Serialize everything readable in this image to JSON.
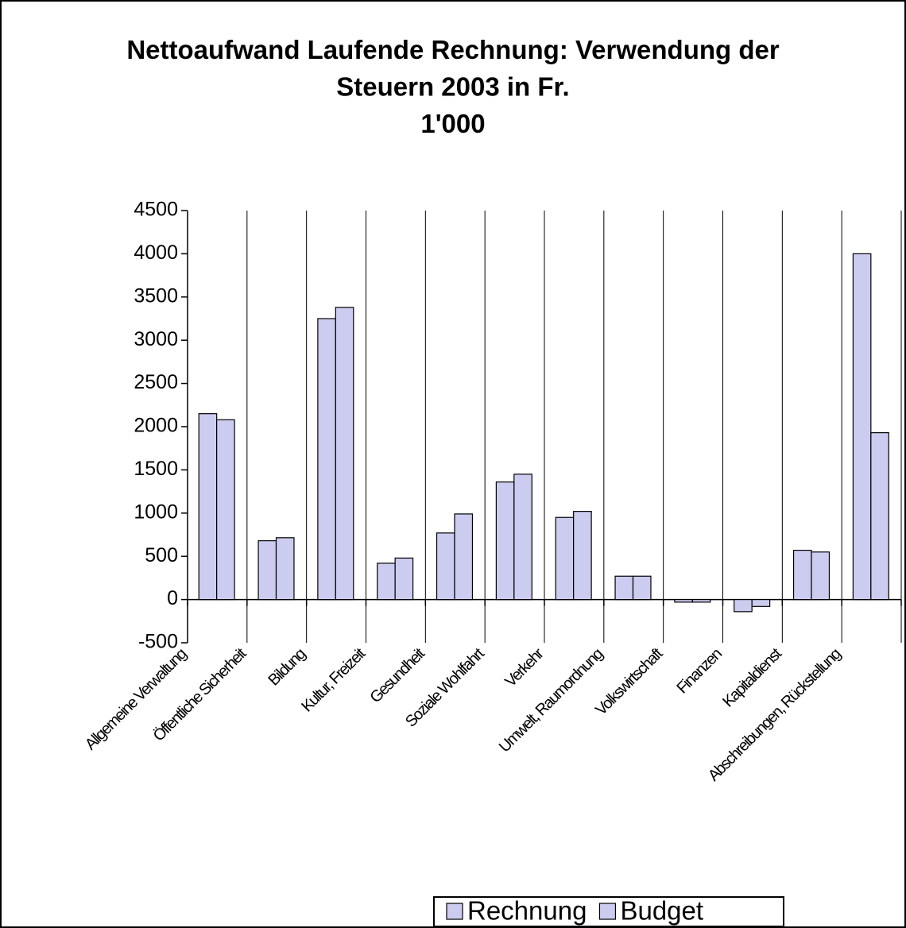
{
  "chart_data": {
    "type": "bar",
    "title": "Nettoaufwand Laufende Rechnung: Verwendung der Steuern 2003 in Fr. 1'000",
    "categories": [
      "Allgemeine Verwaltung",
      "Öffentliche Sicherheit",
      "Bildung",
      "Kultur, Freizeit",
      "Gesundheit",
      "Soziale Wohlfahrt",
      "Verkehr",
      "Umwelt, Raumordnung",
      "Volkswirtschaft",
      "Finanzen",
      "Kapitaldienst",
      "Abschreibungen, Rückstellung"
    ],
    "series": [
      {
        "name": "Rechnung",
        "color": "#ccccf0",
        "values": [
          2150,
          680,
          3250,
          420,
          770,
          1360,
          950,
          270,
          -30,
          -140,
          570,
          4000
        ]
      },
      {
        "name": "Budget",
        "color": "#ccccf0",
        "values": [
          2080,
          715,
          3380,
          480,
          990,
          1450,
          1020,
          270,
          -30,
          -80,
          550,
          1930
        ]
      }
    ],
    "ylim": [
      -500,
      4500
    ],
    "yticks": [
      -500,
      0,
      500,
      1000,
      1500,
      2000,
      2500,
      3000,
      3500,
      4000,
      4500
    ],
    "grid": "vertical",
    "legend": "bottom"
  }
}
